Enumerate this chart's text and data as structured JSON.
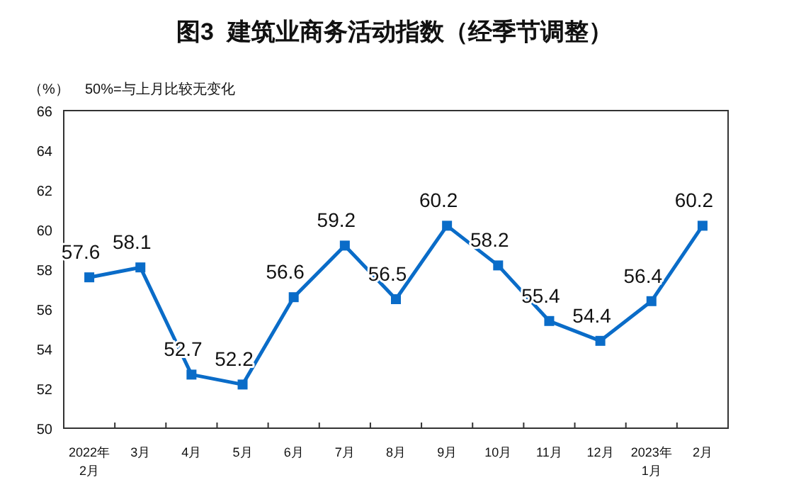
{
  "chart_data": {
    "type": "line",
    "title": "图3  建筑业商务活动指数（经季节调整）",
    "ylabel": "（%）",
    "annotations": [
      "50%=与上月比较无变化"
    ],
    "categories": [
      "2022年\n2月",
      "3月",
      "4月",
      "5月",
      "6月",
      "7月",
      "8月",
      "9月",
      "10月",
      "11月",
      "12月",
      "2023年\n1月",
      "2月"
    ],
    "series": [
      {
        "color": "#0a6cc8",
        "values": [
          57.6,
          58.1,
          52.7,
          52.2,
          56.6,
          59.2,
          56.5,
          60.2,
          58.2,
          55.4,
          54.4,
          56.4,
          60.2
        ]
      }
    ],
    "ylim": [
      50,
      66
    ],
    "yticks": [
      50,
      52,
      54,
      56,
      58,
      60,
      62,
      64,
      66
    ],
    "grid": false,
    "marker": "square",
    "line_style": "solid",
    "data_labels": true
  }
}
